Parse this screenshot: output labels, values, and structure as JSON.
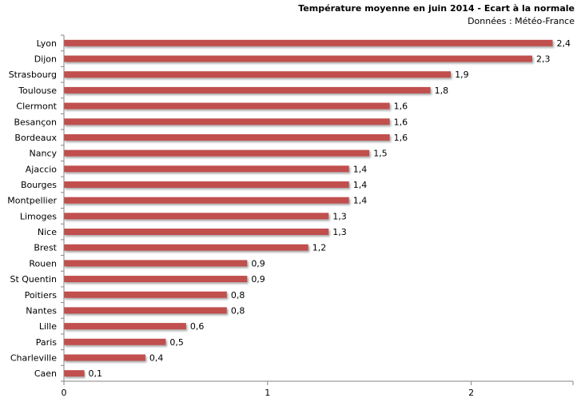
{
  "chart_data": {
    "type": "bar",
    "orientation": "horizontal",
    "title": "Température moyenne en juin 2014 - Ecart à la normale",
    "subtitle": "Données : Météo-France",
    "categories": [
      "Lyon",
      "Dijon",
      "Strasbourg",
      "Toulouse",
      "Clermont",
      "Besançon",
      "Bordeaux",
      "Nancy",
      "Ajaccio",
      "Bourges",
      "Montpellier",
      "Limoges",
      "Nice",
      "Brest",
      "Rouen",
      "St Quentin",
      "Poitiers",
      "Nantes",
      "Lille",
      "Paris",
      "Charleville",
      "Caen"
    ],
    "values": [
      2.4,
      2.3,
      1.9,
      1.8,
      1.6,
      1.6,
      1.6,
      1.5,
      1.4,
      1.4,
      1.4,
      1.3,
      1.3,
      1.2,
      0.9,
      0.9,
      0.8,
      0.8,
      0.6,
      0.5,
      0.4,
      0.1
    ],
    "value_labels": [
      "2,4",
      "2,3",
      "1,9",
      "1,8",
      "1,6",
      "1,6",
      "1,6",
      "1,5",
      "1,4",
      "1,4",
      "1,4",
      "1,3",
      "1,3",
      "1,2",
      "0,9",
      "0,9",
      "0,8",
      "0,8",
      "0,6",
      "0,5",
      "0,4",
      "0,1"
    ],
    "xticks": [
      0,
      1,
      2
    ],
    "xtick_labels": [
      "0",
      "1",
      "2"
    ],
    "xlim": [
      0,
      2.5
    ],
    "bar_color": "#c0504d",
    "axis_color": "#868686",
    "grid": false,
    "legend": false
  }
}
